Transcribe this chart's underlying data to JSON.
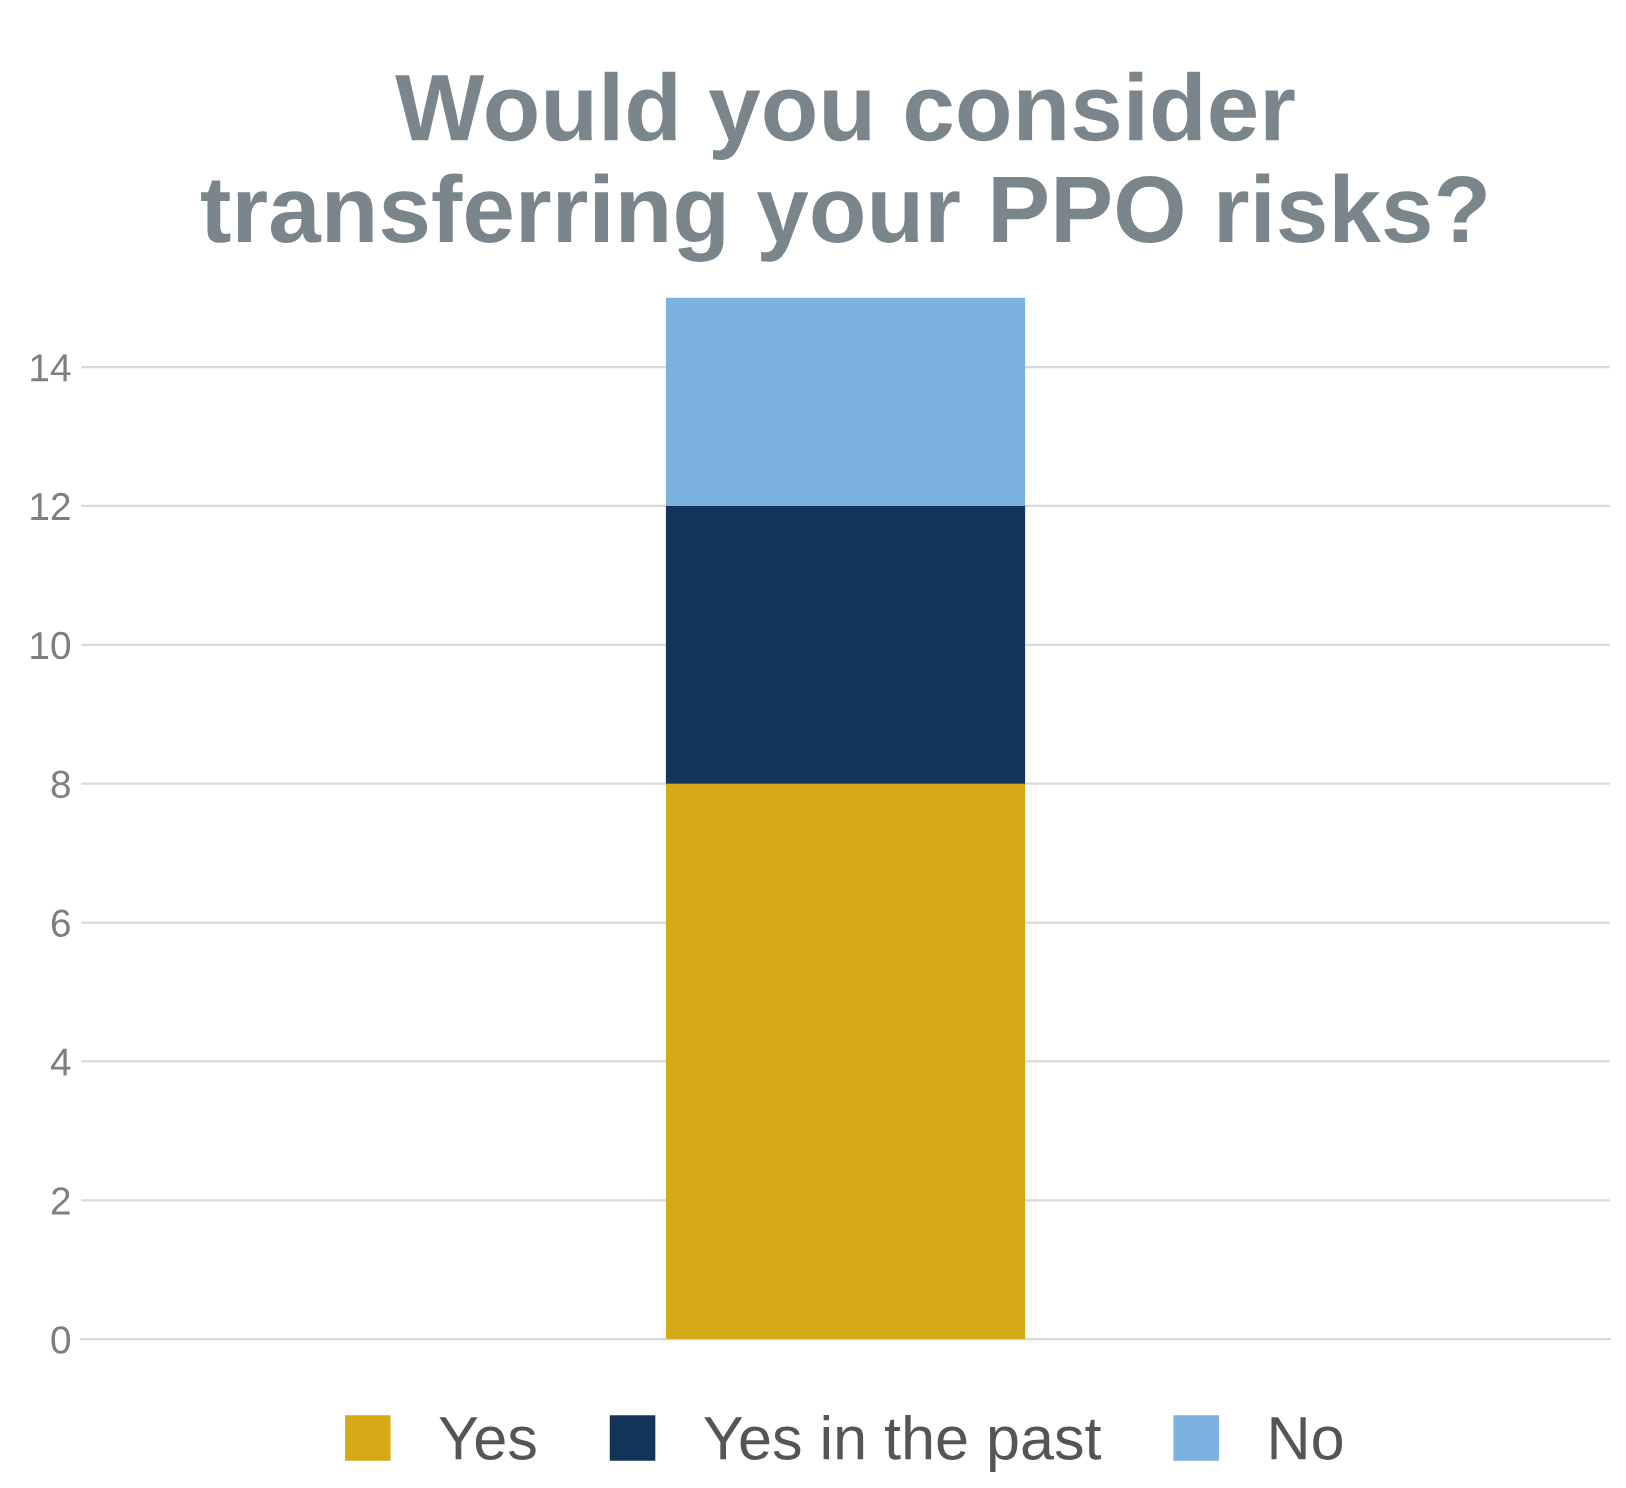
{
  "chart_data": {
    "type": "bar",
    "title": "Would you consider\ntransferring your PPO risks?",
    "categories": [
      null
    ],
    "stacked": true,
    "series": [
      {
        "name": "Yes",
        "color": "#d6a916",
        "values": [
          8
        ]
      },
      {
        "name": "Yes in the past",
        "color": "#14355a",
        "values": [
          4
        ]
      },
      {
        "name": "No",
        "color": "#7db1df",
        "values": [
          3
        ]
      }
    ],
    "ylim": [
      0,
      15
    ],
    "yticks": [
      0,
      2,
      4,
      6,
      8,
      10,
      12,
      14
    ],
    "grid": "y",
    "legend": "bottom"
  }
}
